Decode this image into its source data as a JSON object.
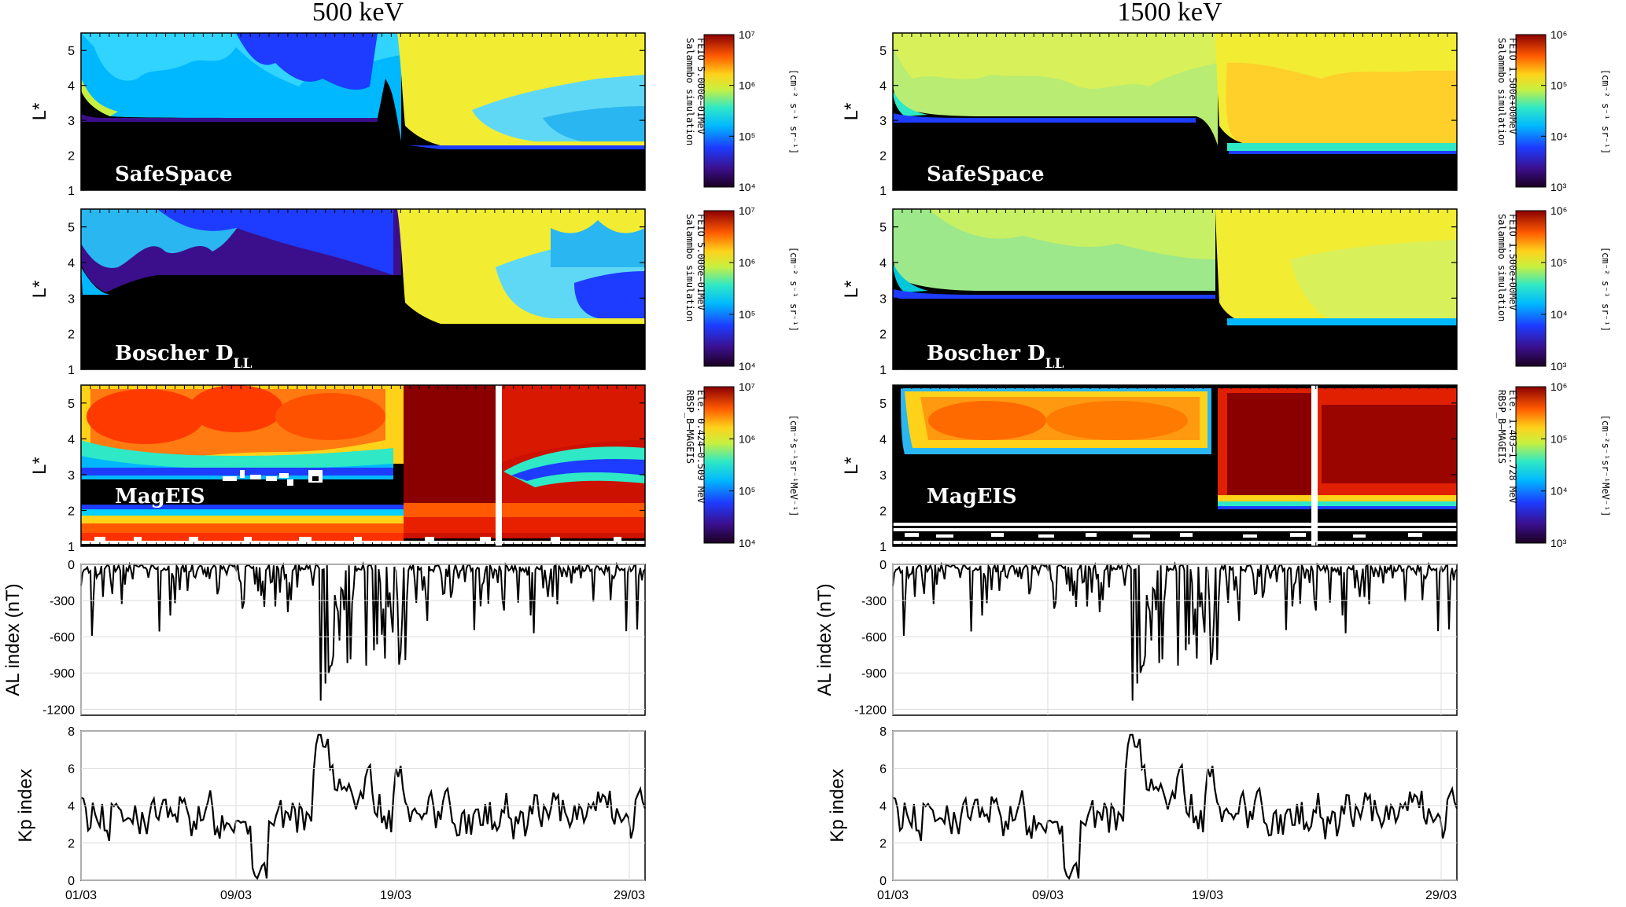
{
  "chart_data": [
    {
      "title": "500 keV",
      "type": "heatmap",
      "x_tick_labels": [
        "01/03",
        "09/03",
        "19/03",
        "29/03"
      ],
      "panels": [
        {
          "label": "SafeSpace",
          "label_sub": "",
          "ylabel": "L*",
          "yticks": [
            "1",
            "2",
            "3",
            "4",
            "5"
          ],
          "ylim": [
            1,
            5.5
          ],
          "colorbar": {
            "title": "Salammbo simulation",
            "subtitle": "FEIO 5.000e−01MeV",
            "units": "[cm⁻² s⁻¹ sr⁻¹]",
            "ticks": [
              "10⁴",
              "10⁵",
              "10⁶",
              "10⁷"
            ]
          }
        },
        {
          "label": "Boscher D",
          "label_sub": "LL",
          "ylabel": "L*",
          "yticks": [
            "1",
            "2",
            "3",
            "4",
            "5"
          ],
          "ylim": [
            1,
            5.5
          ],
          "colorbar": {
            "title": "Salammbo simulation",
            "subtitle": "FEIO 5.000e−01MeV",
            "units": "[cm⁻² s⁻¹ sr⁻¹]",
            "ticks": [
              "10⁴",
              "10⁵",
              "10⁶",
              "10⁷"
            ]
          }
        },
        {
          "label": "MagEIS",
          "label_sub": "",
          "ylabel": "L*",
          "yticks": [
            "1",
            "2",
            "3",
            "4",
            "5"
          ],
          "ylim": [
            1,
            5.5
          ],
          "colorbar": {
            "title": "RBSP_B—MAGEIS",
            "subtitle": "Ele. 0.424–0.509 MeV",
            "units": "[cm⁻²s⁻¹sr⁻¹MeV⁻¹]",
            "ticks": [
              "10⁴",
              "10⁵",
              "10⁶",
              "10⁷"
            ]
          }
        }
      ],
      "al": {
        "ylabel": "AL index (nT)",
        "yticks": [
          "0",
          "-300",
          "-600",
          "-900",
          "-1200"
        ],
        "ylim": [
          -1250,
          0
        ]
      },
      "kp": {
        "ylabel": "Kp index",
        "yticks": [
          "0",
          "2",
          "4",
          "6",
          "8"
        ],
        "ylim": [
          0,
          8
        ]
      }
    },
    {
      "title": "1500 keV",
      "type": "heatmap",
      "x_tick_labels": [
        "01/03",
        "09/03",
        "19/03",
        "29/03"
      ],
      "panels": [
        {
          "label": "SafeSpace",
          "label_sub": "",
          "ylabel": "L*",
          "yticks": [
            "1",
            "2",
            "3",
            "4",
            "5"
          ],
          "ylim": [
            1,
            5.5
          ],
          "colorbar": {
            "title": "Salammbo simulation",
            "subtitle": "FEIO 1.500e+00MeV",
            "units": "[cm⁻² s⁻¹ sr⁻¹]",
            "ticks": [
              "10³",
              "10⁴",
              "10⁵",
              "10⁶"
            ]
          }
        },
        {
          "label": "Boscher D",
          "label_sub": "LL",
          "ylabel": "L*",
          "yticks": [
            "1",
            "2",
            "3",
            "4",
            "5"
          ],
          "ylim": [
            1,
            5.5
          ],
          "colorbar": {
            "title": "Salammbo simulation",
            "subtitle": "FEIO 1.500e+00MeV",
            "units": "[cm⁻² s⁻¹ sr⁻¹]",
            "ticks": [
              "10³",
              "10⁴",
              "10⁵",
              "10⁶"
            ]
          }
        },
        {
          "label": "MagEIS",
          "label_sub": "",
          "ylabel": "L*",
          "yticks": [
            "1",
            "2",
            "3",
            "4",
            "5"
          ],
          "ylim": [
            1,
            5.5
          ],
          "colorbar": {
            "title": "RBSP_B—MAGEIS",
            "subtitle": "Ele. 1.403–1.728 MeV",
            "units": "[cm⁻²s⁻¹sr⁻¹MeV⁻¹]",
            "ticks": [
              "10³",
              "10⁴",
              "10⁵",
              "10⁶"
            ]
          }
        }
      ],
      "al": {
        "ylabel": "AL index (nT)",
        "yticks": [
          "0",
          "-300",
          "-600",
          "-900",
          "-1200"
        ],
        "ylim": [
          -1250,
          0
        ]
      },
      "kp": {
        "ylabel": "Kp index",
        "yticks": [
          "0",
          "2",
          "4",
          "6",
          "8"
        ],
        "ylim": [
          0,
          8
        ]
      }
    }
  ]
}
